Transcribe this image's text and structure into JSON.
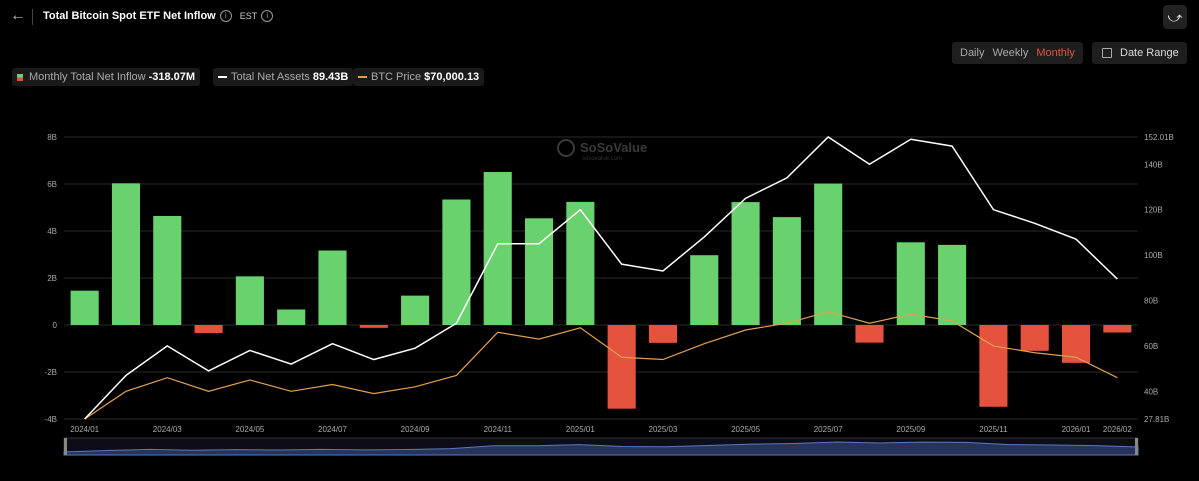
{
  "header": {
    "title": "Total Bitcoin Spot ETF Net Inflow",
    "timezone": "EST"
  },
  "periods": [
    {
      "label": "Daily",
      "active": false
    },
    {
      "label": "Weekly",
      "active": false
    },
    {
      "label": "Monthly",
      "active": true
    }
  ],
  "date_range_label": "Date Range",
  "legend": [
    {
      "label": "Monthly Total Net Inflow",
      "value": "-318.07M"
    },
    {
      "label": "Total Net Assets",
      "value": "89.43B"
    },
    {
      "label": "BTC Price",
      "value": "$70,000.13"
    }
  ],
  "watermark": {
    "name": "SoSoValue",
    "site": "sosovalue.com"
  },
  "colors": {
    "positive": "#6ad16f",
    "negative": "#e5533f",
    "assets_line": "#ffffff",
    "price_line": "#e0a050",
    "active_period": "#e5533f"
  },
  "chart_data": {
    "type": "bar",
    "title": "Total Bitcoin Spot ETF Net Inflow",
    "categories": [
      "2024/01",
      "2024/02",
      "2024/03",
      "2024/04",
      "2024/05",
      "2024/06",
      "2024/07",
      "2024/08",
      "2024/09",
      "2024/10",
      "2024/11",
      "2024/12",
      "2025/01",
      "2025/02",
      "2025/03",
      "2025/04",
      "2025/05",
      "2025/06",
      "2025/07",
      "2025/08",
      "2025/09",
      "2025/10",
      "2025/11",
      "2025/12",
      "2026/01",
      "2026/02"
    ],
    "x_tick_labels": [
      "2024/01",
      "2024/03",
      "2024/05",
      "2024/07",
      "2024/09",
      "2024/11",
      "2025/01",
      "2025/03",
      "2025/05",
      "2025/07",
      "2025/09",
      "2025/11",
      "2026/01",
      "2026/02"
    ],
    "series": [
      {
        "name": "Monthly Total Net Inflow",
        "type": "bar",
        "axis": "left",
        "unit": "B",
        "values": [
          1.46,
          6.03,
          4.64,
          -0.34,
          2.07,
          0.66,
          3.17,
          -0.12,
          1.25,
          5.34,
          6.51,
          4.54,
          5.24,
          -3.56,
          -0.76,
          2.97,
          5.23,
          4.59,
          6.02,
          -0.75,
          3.52,
          3.41,
          -3.48,
          -1.1,
          -1.61,
          -0.32
        ]
      },
      {
        "name": "Total Net Assets",
        "type": "line",
        "axis": "right",
        "unit": "B",
        "values": [
          27.81,
          47,
          60,
          49,
          58,
          52,
          61,
          54,
          59,
          70,
          105,
          105,
          120,
          96,
          93,
          108,
          125,
          134,
          152.01,
          140,
          151,
          148,
          120,
          114,
          107,
          89.43
        ]
      },
      {
        "name": "BTC Price",
        "type": "line",
        "axis": "right",
        "unit": "B-scale",
        "values": [
          27.81,
          40,
          46,
          40,
          45,
          40,
          43,
          39,
          42,
          47,
          66,
          63,
          68,
          55,
          54,
          61,
          67,
          70,
          75,
          70,
          74,
          71,
          60,
          57,
          55,
          46
        ]
      }
    ],
    "y_left": {
      "ticks": [
        "8B",
        "6B",
        "4B",
        "2B",
        "0",
        "-2B",
        "-4B"
      ],
      "range": [
        -4,
        8
      ]
    },
    "y_right": {
      "ticks": [
        "152.01B",
        "140B",
        "120B",
        "100B",
        "80B",
        "60B",
        "40B",
        "27.81B"
      ],
      "range": [
        27.81,
        152.01
      ]
    },
    "grid": true,
    "legend_position": "top-left"
  }
}
